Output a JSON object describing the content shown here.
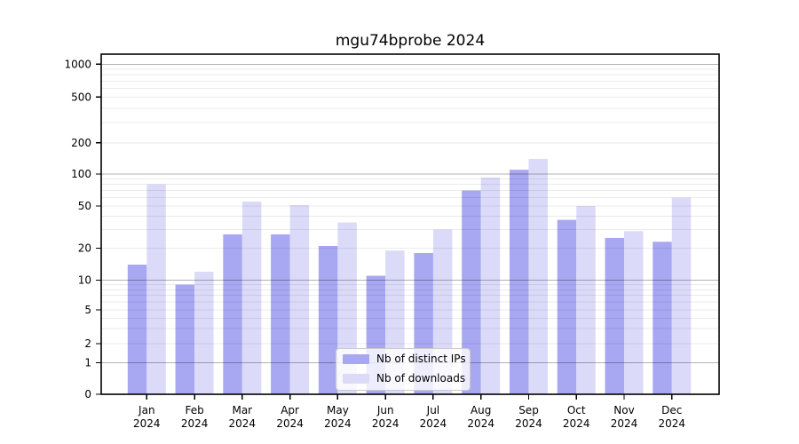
{
  "chart_data": {
    "type": "bar",
    "title": "mgu74bprobe 2024",
    "xlabel": "",
    "ylabel": "",
    "y_scale": "log-like",
    "y_ticks": [
      0,
      1,
      2,
      5,
      10,
      20,
      50,
      100,
      200,
      500,
      1000
    ],
    "ylim": [
      0,
      1000
    ],
    "grid": "on",
    "legend_position": "bottom-center",
    "categories": [
      {
        "month": "Jan",
        "year": "2024"
      },
      {
        "month": "Feb",
        "year": "2024"
      },
      {
        "month": "Mar",
        "year": "2024"
      },
      {
        "month": "Apr",
        "year": "2024"
      },
      {
        "month": "May",
        "year": "2024"
      },
      {
        "month": "Jun",
        "year": "2024"
      },
      {
        "month": "Jul",
        "year": "2024"
      },
      {
        "month": "Aug",
        "year": "2024"
      },
      {
        "month": "Sep",
        "year": "2024"
      },
      {
        "month": "Oct",
        "year": "2024"
      },
      {
        "month": "Nov",
        "year": "2024"
      },
      {
        "month": "Dec",
        "year": "2024"
      }
    ],
    "series": [
      {
        "name": "Nb of distinct IPs",
        "color": "#a7a7f2",
        "values": [
          14,
          9,
          27,
          27,
          21,
          11,
          18,
          70,
          110,
          37,
          25,
          23
        ]
      },
      {
        "name": "Nb of downloads",
        "color": "#dbdbf9",
        "values": [
          80,
          12,
          55,
          51,
          35,
          19,
          30,
          93,
          140,
          50,
          29,
          60
        ]
      }
    ]
  }
}
